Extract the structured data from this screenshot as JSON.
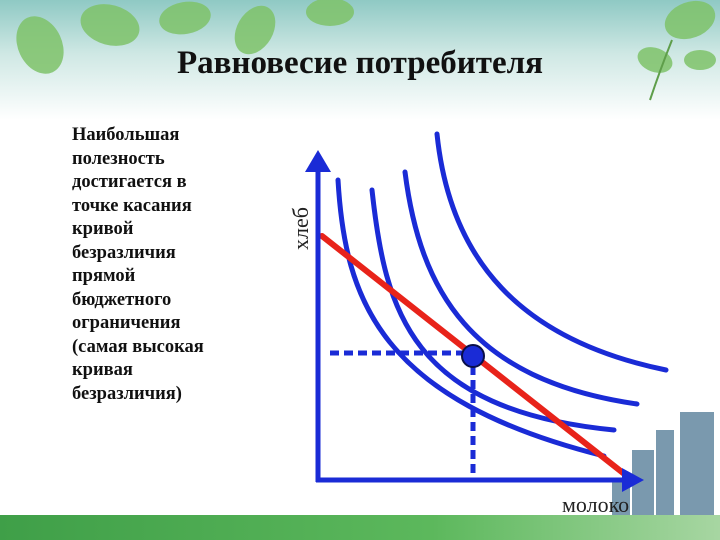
{
  "slide": {
    "title": "Равновесие потребителя",
    "text": "Наибольшая\nполезность\nдостигается в\nточке касания\nкривой\nбезразличия\nпрямой\nбюджетного\nограничения\n(самая высокая\nкривая\nбезразличия)"
  },
  "diagram": {
    "y_axis_label": "хлеб",
    "x_axis_label": "молоко",
    "colors": {
      "indifference_curves": "#1a2bd6",
      "budget_line": "#e8231a",
      "axes": "#1a2bd6",
      "guides": "#1a2bd6",
      "equilibrium_point": "#1a2bd6"
    }
  }
}
